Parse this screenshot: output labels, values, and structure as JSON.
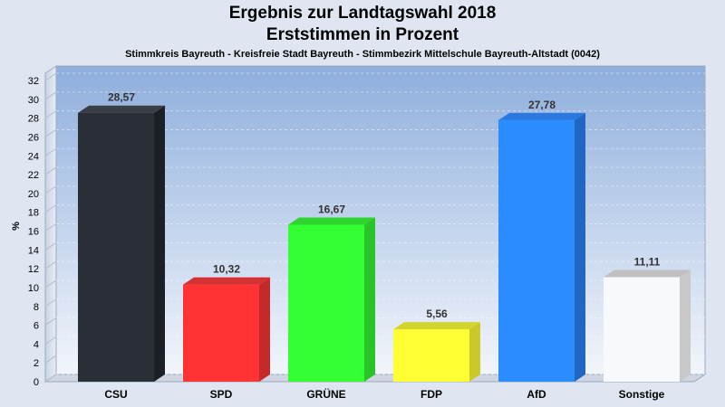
{
  "title": "Ergebnis zur Landtagswahl 2018",
  "subtitle": "Erststimmen in Prozent",
  "caption": "Stimmkreis Bayreuth - Kreisfreie Stadt Bayreuth - Stimmbezirk Mittelschule Bayreuth-Altstadt (0042)",
  "chart_data": {
    "type": "bar",
    "title": "Ergebnis zur Landtagswahl 2018",
    "subtitle": "Erststimmen in Prozent",
    "ylabel": "%",
    "xlabel": "",
    "ylim": [
      0,
      32
    ],
    "yticks": [
      0,
      2,
      4,
      6,
      8,
      10,
      12,
      14,
      16,
      18,
      20,
      22,
      24,
      26,
      28,
      30,
      32
    ],
    "grid": true,
    "categories": [
      "CSU",
      "SPD",
      "GRÜNE",
      "FDP",
      "AfD",
      "Sonstige"
    ],
    "values": [
      28.57,
      10.32,
      16.67,
      5.56,
      27.78,
      11.11
    ],
    "value_labels": [
      "28,57",
      "10,32",
      "16,67",
      "5,56",
      "27,78",
      "11,11"
    ],
    "colors": [
      "#2a2e36",
      "#ff3333",
      "#33ff33",
      "#ffff33",
      "#2b8cff",
      "#f7f9fd"
    ],
    "side_colors": [
      "#1c1f25",
      "#c42a2a",
      "#28c428",
      "#c9c92a",
      "#2266c4",
      "#c8c8c8"
    ],
    "top_colors": [
      "#3a3e46",
      "#d43232",
      "#2fd42f",
      "#d4d42f",
      "#2a78e0",
      "#c0c0c0"
    ]
  }
}
